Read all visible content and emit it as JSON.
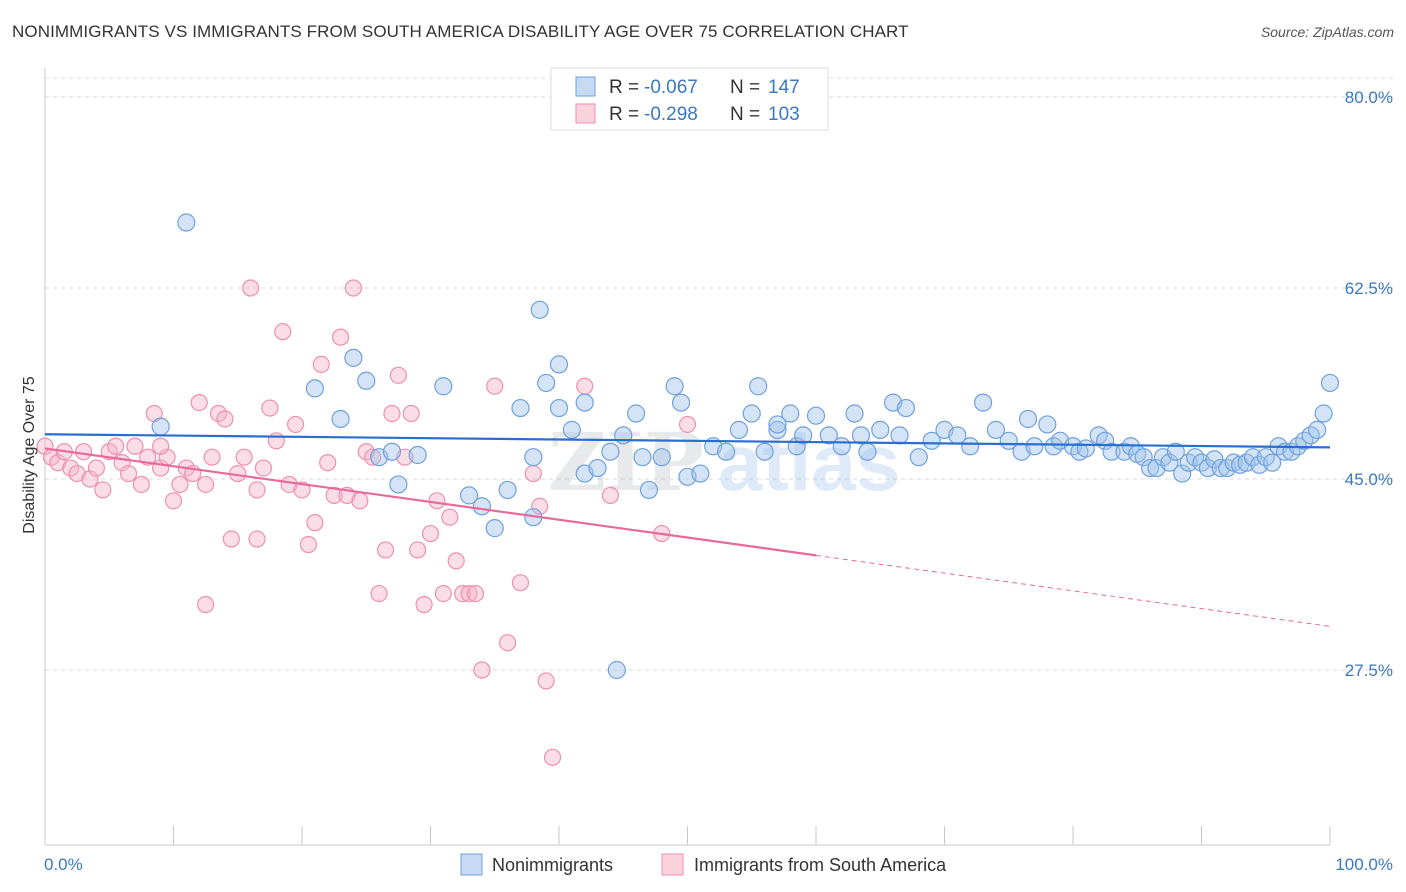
{
  "title": "NONIMMIGRANTS VS IMMIGRANTS FROM SOUTH AMERICA DISABILITY AGE OVER 75 CORRELATION CHART",
  "source": "Source: ZipAtlas.com",
  "watermark": {
    "part1": "ZIP",
    "part2": "atlas"
  },
  "legend_box": {
    "rows": [
      {
        "r_label": "R = ",
        "r_value": "-0.067",
        "n_label": "N = ",
        "n_value": "147"
      },
      {
        "r_label": "R = ",
        "r_value": "-0.298",
        "n_label": "N = ",
        "n_value": "103"
      }
    ]
  },
  "colors": {
    "blue": "#6fa1dc",
    "blue_fill": "rgba(160,195,235,0.45)",
    "blue_line": "#2a6fcf",
    "pink": "#ef8fb0",
    "pink_fill": "rgba(245,180,200,0.45)",
    "pink_line": "#e8699a",
    "tick": "#3a78c3"
  },
  "chart_data": {
    "type": "scatter",
    "title": "NONIMMIGRANTS VS IMMIGRANTS FROM SOUTH AMERICA DISABILITY AGE OVER 75 CORRELATION CHART",
    "xlabel": "",
    "ylabel": "Disability Age Over 75",
    "xlim": [
      0,
      100
    ],
    "ylim": [
      12,
      83
    ],
    "x_tick_labels": [
      "0.0%",
      "100.0%"
    ],
    "y_ticks": [
      27.5,
      45.0,
      62.5,
      80.0
    ],
    "y_tick_labels": [
      "27.5%",
      "45.0%",
      "62.5%",
      "80.0%"
    ],
    "grid": true,
    "legend_position": "bottom",
    "series": [
      {
        "name": "Nonimmigrants",
        "R": -0.067,
        "N": 147,
        "trend": {
          "x": [
            0,
            100
          ],
          "y": [
            49.1,
            47.9
          ]
        },
        "points": [
          [
            9,
            49.8
          ],
          [
            11,
            68.5
          ],
          [
            21,
            53.3
          ],
          [
            24,
            56.1
          ],
          [
            25,
            54.0
          ],
          [
            23,
            50.5
          ],
          [
            26,
            47.0
          ],
          [
            27,
            47.5
          ],
          [
            27.5,
            44.5
          ],
          [
            29,
            47.2
          ],
          [
            31,
            53.5
          ],
          [
            33,
            43.5
          ],
          [
            34,
            42.5
          ],
          [
            35,
            40.5
          ],
          [
            36,
            44.0
          ],
          [
            37,
            51.5
          ],
          [
            38,
            47.0
          ],
          [
            38,
            41.5
          ],
          [
            38.5,
            60.5
          ],
          [
            39,
            53.8
          ],
          [
            40,
            51.5
          ],
          [
            40,
            55.5
          ],
          [
            41,
            49.5
          ],
          [
            42,
            52.0
          ],
          [
            42,
            45.5
          ],
          [
            43,
            46.0
          ],
          [
            44,
            47.5
          ],
          [
            44.5,
            27.5
          ],
          [
            45,
            49.0
          ],
          [
            46,
            51.0
          ],
          [
            46.5,
            47.0
          ],
          [
            47,
            44.0
          ],
          [
            48,
            47.0
          ],
          [
            49,
            53.5
          ],
          [
            49.5,
            52.0
          ],
          [
            50,
            45.2
          ],
          [
            51,
            45.5
          ],
          [
            52,
            48.0
          ],
          [
            53,
            47.5
          ],
          [
            54,
            49.5
          ],
          [
            55,
            51.0
          ],
          [
            55.5,
            53.5
          ],
          [
            56,
            47.5
          ],
          [
            57,
            49.5
          ],
          [
            57,
            50.0
          ],
          [
            58,
            51.0
          ],
          [
            58.5,
            48.0
          ],
          [
            59,
            49.0
          ],
          [
            60,
            50.8
          ],
          [
            61,
            49.0
          ],
          [
            62,
            48.0
          ],
          [
            63,
            51.0
          ],
          [
            63.5,
            49.0
          ],
          [
            64,
            47.5
          ],
          [
            65,
            49.5
          ],
          [
            66,
            52.0
          ],
          [
            66.5,
            49.0
          ],
          [
            67,
            51.5
          ],
          [
            68,
            47.0
          ],
          [
            69,
            48.5
          ],
          [
            70,
            49.5
          ],
          [
            71,
            49.0
          ],
          [
            72,
            48.0
          ],
          [
            73,
            52.0
          ],
          [
            74,
            49.5
          ],
          [
            75,
            48.5
          ],
          [
            76,
            47.5
          ],
          [
            76.5,
            50.5
          ],
          [
            77,
            48.0
          ],
          [
            78,
            50.0
          ],
          [
            78.5,
            48.0
          ],
          [
            79,
            48.5
          ],
          [
            80,
            48.0
          ],
          [
            80.5,
            47.5
          ],
          [
            81,
            47.8
          ],
          [
            82,
            49.0
          ],
          [
            82.5,
            48.5
          ],
          [
            83,
            47.5
          ],
          [
            84,
            47.5
          ],
          [
            84.5,
            48.0
          ],
          [
            85,
            47.3
          ],
          [
            85.5,
            47.0
          ],
          [
            86,
            46.0
          ],
          [
            86.5,
            46.0
          ],
          [
            87,
            47.0
          ],
          [
            87.5,
            46.5
          ],
          [
            88,
            47.5
          ],
          [
            88.5,
            45.5
          ],
          [
            89,
            46.5
          ],
          [
            89.5,
            47.0
          ],
          [
            90,
            46.5
          ],
          [
            90.5,
            46.0
          ],
          [
            91,
            46.8
          ],
          [
            91.5,
            46.0
          ],
          [
            92,
            46.0
          ],
          [
            92.5,
            46.5
          ],
          [
            93,
            46.3
          ],
          [
            93.5,
            46.5
          ],
          [
            94,
            47.0
          ],
          [
            94.5,
            46.3
          ],
          [
            95,
            47.0
          ],
          [
            95.5,
            46.5
          ],
          [
            96,
            48.0
          ],
          [
            96.5,
            47.5
          ],
          [
            97,
            47.5
          ],
          [
            97.5,
            48.0
          ],
          [
            98,
            48.5
          ],
          [
            98.5,
            49.0
          ],
          [
            99,
            49.5
          ],
          [
            99.5,
            51.0
          ],
          [
            100,
            53.8
          ]
        ]
      },
      {
        "name": "Immigrants from South America",
        "R": -0.298,
        "N": 103,
        "trend": {
          "x": [
            0,
            60
          ],
          "y": [
            47.8,
            38.0
          ]
        },
        "trend_dashed": {
          "x": [
            60,
            100
          ],
          "y": [
            38.0,
            31.5
          ]
        },
        "points": [
          [
            0,
            48.0
          ],
          [
            0.5,
            47.0
          ],
          [
            1,
            46.5
          ],
          [
            1.5,
            47.5
          ],
          [
            2,
            46.0
          ],
          [
            2.5,
            45.5
          ],
          [
            3,
            47.5
          ],
          [
            3.5,
            45.0
          ],
          [
            4,
            46.0
          ],
          [
            4.5,
            44.0
          ],
          [
            5,
            47.5
          ],
          [
            5.5,
            48.0
          ],
          [
            6,
            46.5
          ],
          [
            6.5,
            45.5
          ],
          [
            7,
            48.0
          ],
          [
            7.5,
            44.5
          ],
          [
            8,
            47.0
          ],
          [
            8.5,
            51.0
          ],
          [
            9,
            46.0
          ],
          [
            9.5,
            47.0
          ],
          [
            10,
            43.0
          ],
          [
            10.5,
            44.5
          ],
          [
            11,
            46.0
          ],
          [
            11.5,
            45.5
          ],
          [
            12,
            52.0
          ],
          [
            12.5,
            44.5
          ],
          [
            13,
            47.0
          ],
          [
            13.5,
            51.0
          ],
          [
            14,
            50.5
          ],
          [
            14.5,
            39.5
          ],
          [
            15,
            45.5
          ],
          [
            15.5,
            47.0
          ],
          [
            16,
            62.5
          ],
          [
            16.5,
            44.0
          ],
          [
            17,
            46.0
          ],
          [
            17.5,
            51.5
          ],
          [
            18,
            48.5
          ],
          [
            18.5,
            58.5
          ],
          [
            19,
            44.5
          ],
          [
            19.5,
            50.0
          ],
          [
            20,
            44.0
          ],
          [
            20.5,
            39.0
          ],
          [
            21,
            41.0
          ],
          [
            21.5,
            55.5
          ],
          [
            22,
            46.5
          ],
          [
            22.5,
            43.5
          ],
          [
            23,
            58.0
          ],
          [
            23.5,
            43.5
          ],
          [
            24,
            62.5
          ],
          [
            24.5,
            43.0
          ],
          [
            25,
            47.5
          ],
          [
            25.5,
            47.0
          ],
          [
            26,
            34.5
          ],
          [
            26.5,
            38.5
          ],
          [
            27,
            51.0
          ],
          [
            27.5,
            54.5
          ],
          [
            28,
            47.0
          ],
          [
            28.5,
            51.0
          ],
          [
            29,
            38.5
          ],
          [
            29.5,
            33.5
          ],
          [
            30,
            40.0
          ],
          [
            30.5,
            43.0
          ],
          [
            31,
            34.5
          ],
          [
            31.5,
            41.5
          ],
          [
            32,
            37.5
          ],
          [
            32.5,
            34.5
          ],
          [
            33,
            34.5
          ],
          [
            33.5,
            34.5
          ],
          [
            34,
            27.5
          ],
          [
            35,
            53.5
          ],
          [
            36,
            30.0
          ],
          [
            37,
            35.5
          ],
          [
            38,
            45.5
          ],
          [
            38.5,
            42.5
          ],
          [
            39,
            26.5
          ],
          [
            39.5,
            19.5
          ],
          [
            42,
            53.5
          ],
          [
            44,
            43.5
          ],
          [
            48,
            40.0
          ],
          [
            50,
            50.0
          ],
          [
            12.5,
            33.5
          ],
          [
            9,
            48.0
          ],
          [
            16.5,
            39.5
          ]
        ]
      }
    ]
  }
}
